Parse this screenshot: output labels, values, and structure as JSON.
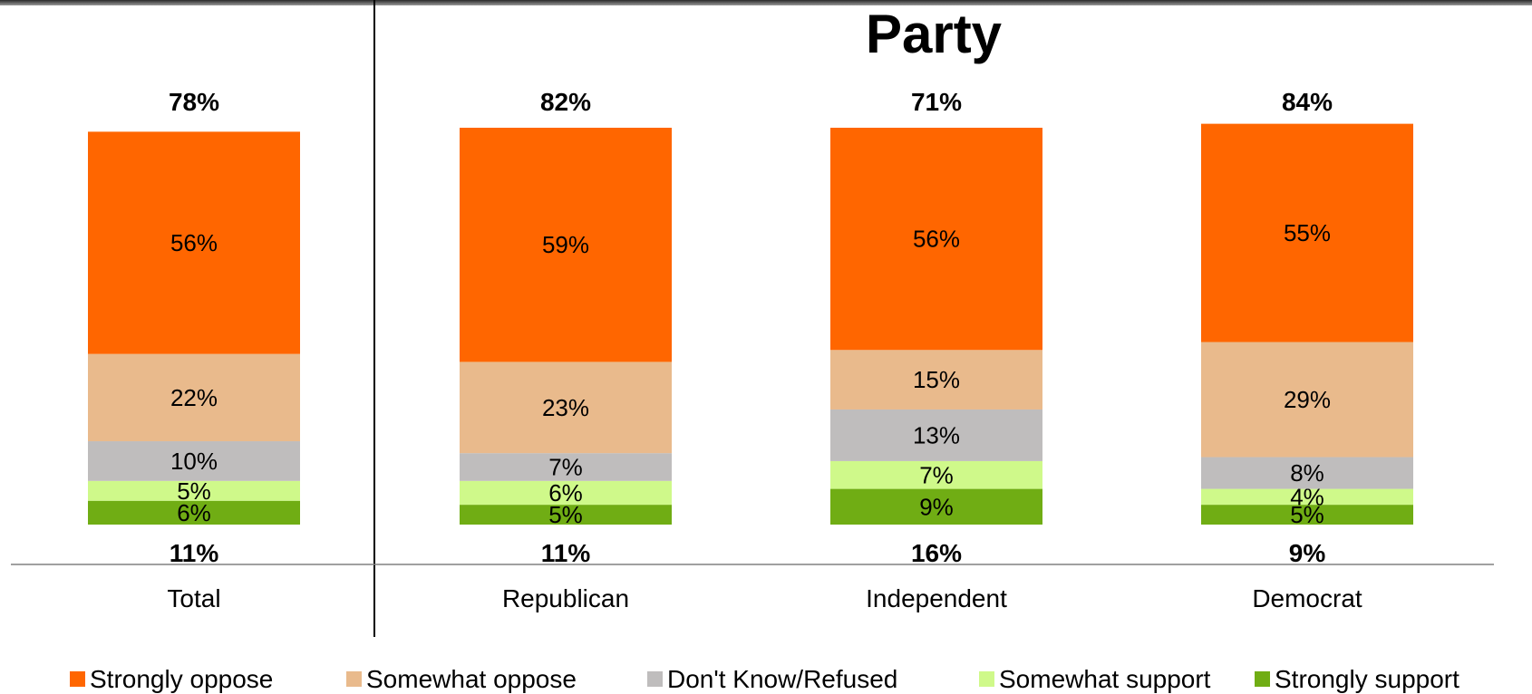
{
  "chart_data": {
    "type": "stacked-bar",
    "title": "Party",
    "categories": [
      "Total",
      "Republican",
      "Independent",
      "Democrat"
    ],
    "series": [
      {
        "name": "Strongly support",
        "color": "#70ad14",
        "values": [
          6,
          5,
          9,
          5
        ]
      },
      {
        "name": "Somewhat support",
        "color": "#cff98a",
        "values": [
          5,
          6,
          7,
          4
        ]
      },
      {
        "name": "Don't Know/Refused",
        "color": "#bfbdbd",
        "values": [
          10,
          7,
          13,
          8
        ]
      },
      {
        "name": "Somewhat oppose",
        "color": "#e9ba8c",
        "values": [
          22,
          23,
          15,
          29
        ]
      },
      {
        "name": "Strongly oppose",
        "color": "#ff6600",
        "values": [
          56,
          59,
          56,
          55
        ]
      }
    ],
    "top_totals": [
      "78%",
      "82%",
      "71%",
      "84%"
    ],
    "bottom_totals": [
      "11%",
      "11%",
      "16%",
      "9%"
    ],
    "legend_order": [
      "Strongly oppose",
      "Somewhat oppose",
      "Don't Know/Refused",
      "Somewhat support",
      "Strongly support"
    ],
    "legend_position": "bottom",
    "grid": false
  }
}
